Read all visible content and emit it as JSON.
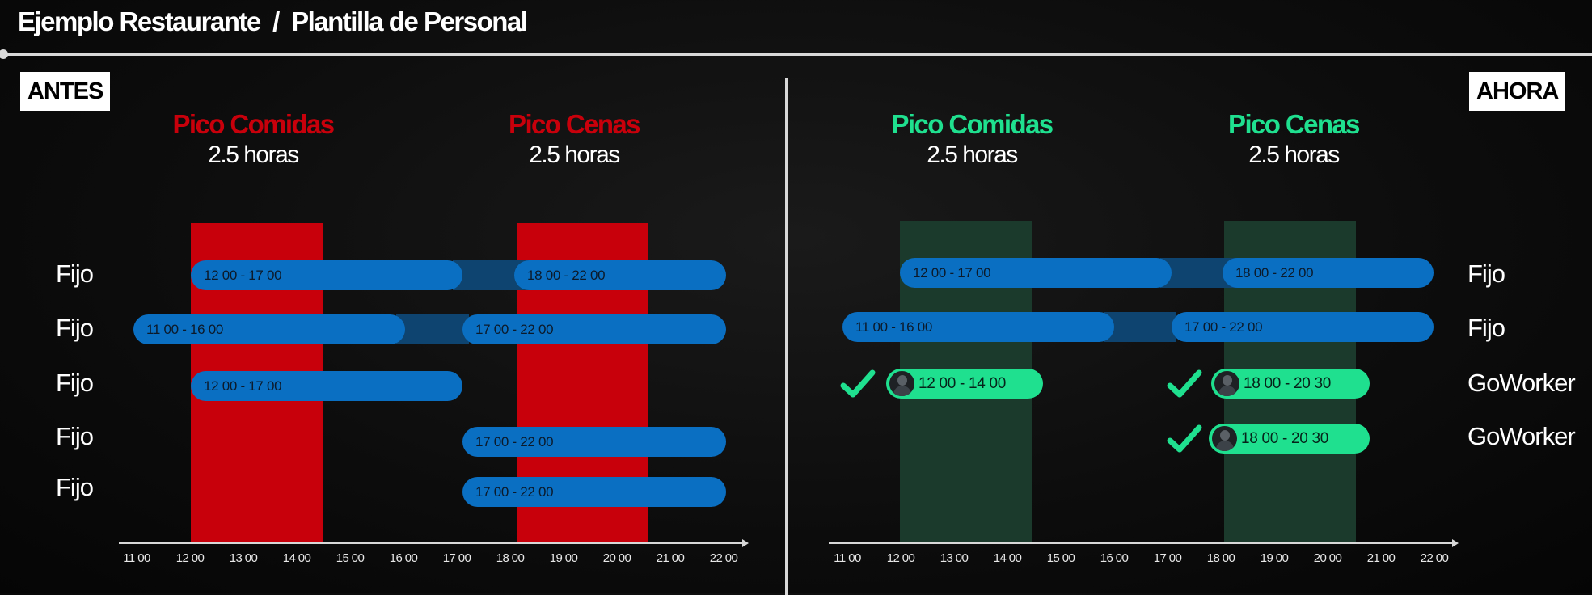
{
  "header": {
    "title": "Ejemplo Restaurante  /  Plantilla de Personal"
  },
  "colors": {
    "red_peak": "#c8000b",
    "green_peak_title": "#1fe08f",
    "green_block": "#1b3a2c",
    "shift_bar": "#0a6fc2",
    "goworker_bar": "#1fe08f"
  },
  "antes": {
    "badge": "ANTES",
    "peaks": [
      {
        "title": "Pico Comidas",
        "subtitle": "2.5 horas"
      },
      {
        "title": "Pico Cenas",
        "subtitle": "2.5 horas"
      }
    ],
    "rows": [
      {
        "label": "Fijo",
        "shifts": [
          "12 00 - 17 00",
          "18 00 - 22 00"
        ]
      },
      {
        "label": "Fijo",
        "shifts": [
          "11 00 - 16 00",
          "17 00 - 22 00"
        ]
      },
      {
        "label": "Fijo",
        "shifts": [
          "12 00 - 17 00"
        ]
      },
      {
        "label": "Fijo",
        "shifts": [
          "17 00 - 22 00"
        ]
      },
      {
        "label": "Fijo",
        "shifts": [
          "17 00 - 22 00"
        ]
      }
    ],
    "ticks": [
      "11 00",
      "12 00",
      "13 00",
      "14 00",
      "15 00",
      "16 00",
      "17 00",
      "18 00",
      "19 00",
      "20 00",
      "21 00",
      "22 00"
    ]
  },
  "ahora": {
    "badge": "AHORA",
    "peaks": [
      {
        "title": "Pico Comidas",
        "subtitle": "2.5 horas"
      },
      {
        "title": "Pico Cenas",
        "subtitle": "2.5 horas"
      }
    ],
    "rows": [
      {
        "label": "Fijo",
        "shifts": [
          "12 00 - 17 00",
          "18 00 - 22 00"
        ]
      },
      {
        "label": "Fijo",
        "shifts": [
          "11 00 - 16 00",
          "17 00 - 22 00"
        ]
      },
      {
        "label": "GoWorker",
        "shifts": [
          "12 00 - 14 00",
          "18 00 - 20 30"
        ]
      },
      {
        "label": "GoWorker",
        "shifts": [
          "18 00 - 20 30"
        ]
      }
    ],
    "ticks": [
      "11 00",
      "12 00",
      "13 00",
      "14 00",
      "15 00",
      "16 00",
      "17 00",
      "18 00",
      "19 00",
      "20 00",
      "21 00",
      "22 00"
    ]
  },
  "icons": {
    "check": "check-icon",
    "avatar": "worker-avatar-icon"
  }
}
